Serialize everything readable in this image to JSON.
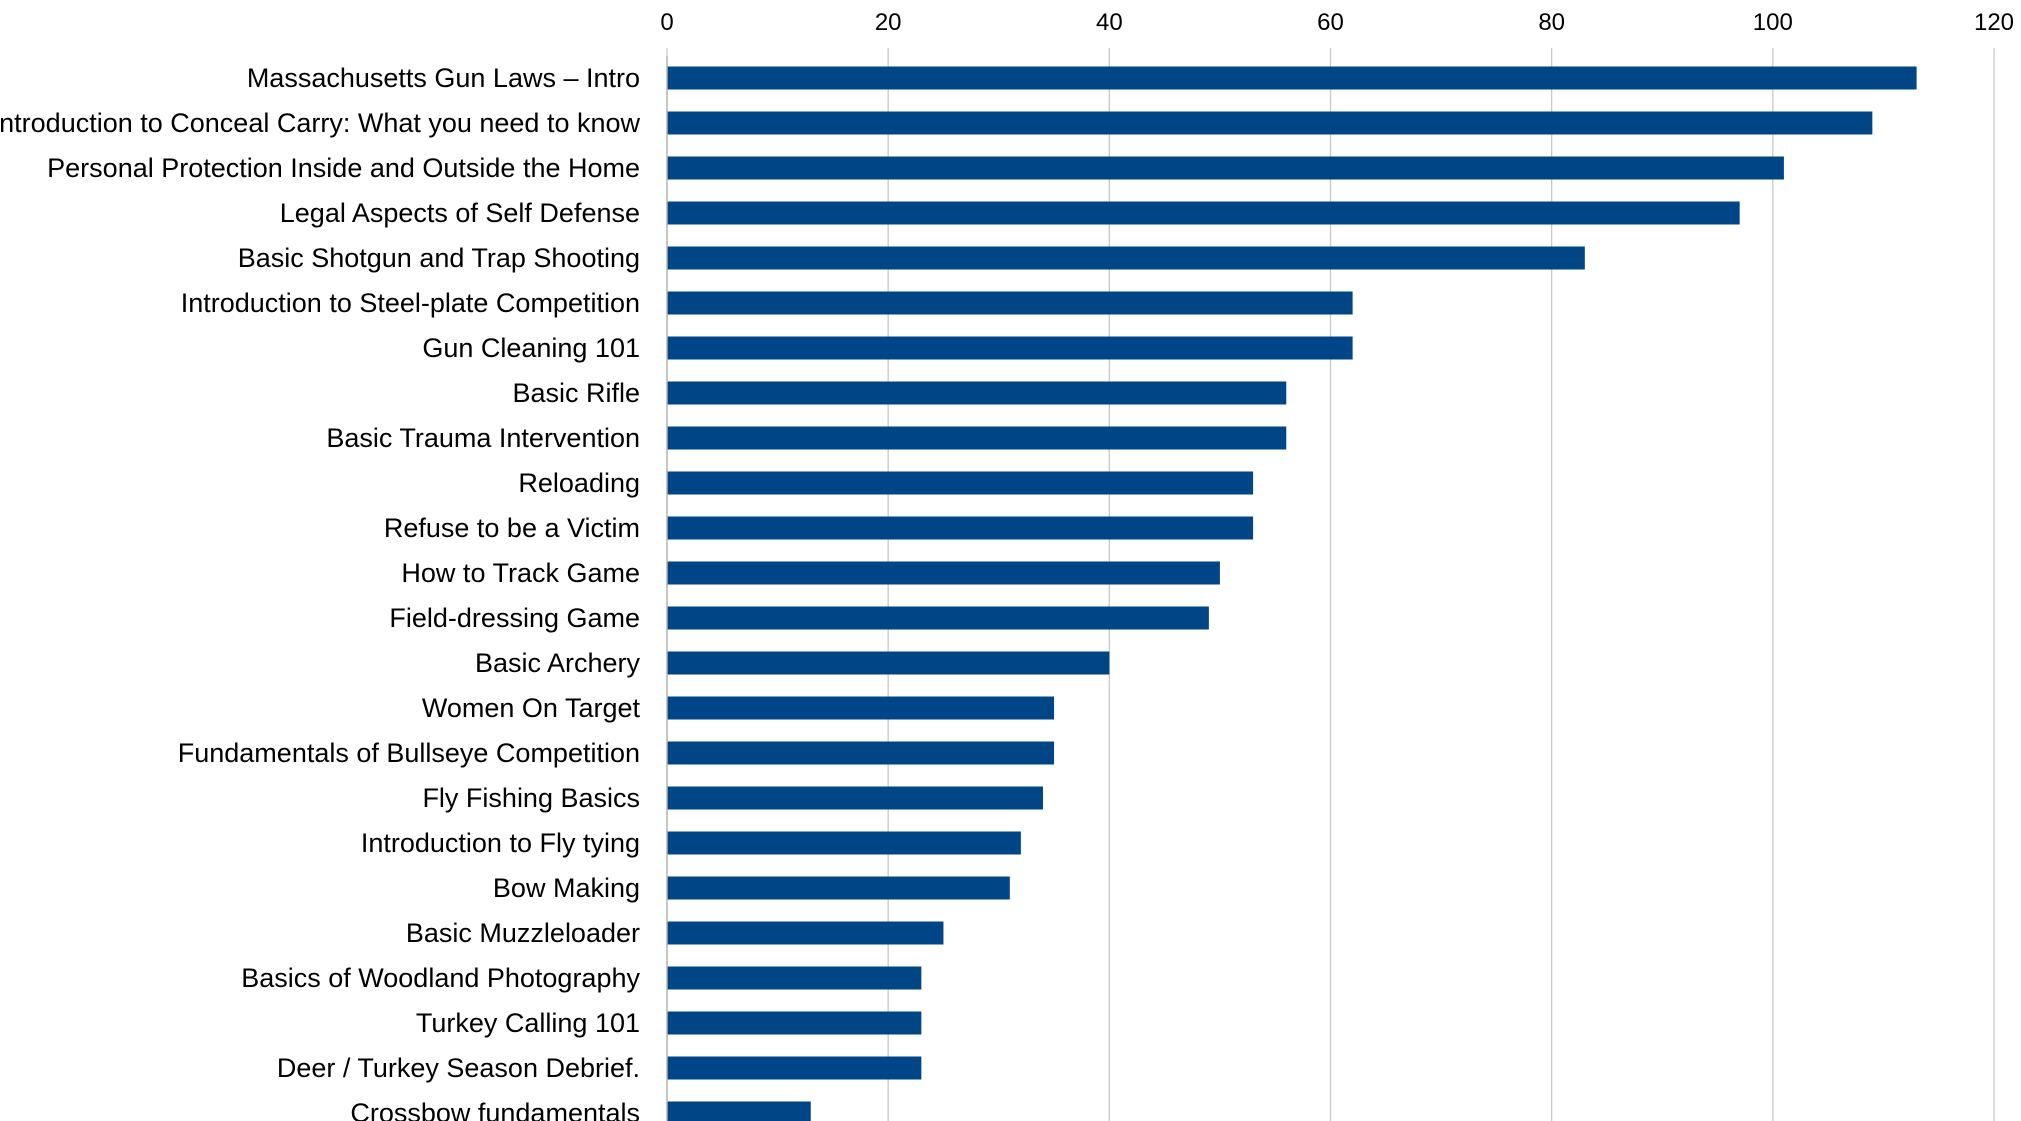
{
  "chart_data": {
    "type": "bar",
    "orientation": "horizontal",
    "title": "",
    "xlabel": "",
    "ylabel": "",
    "xlim": [
      0,
      120
    ],
    "x_ticks": [
      0,
      20,
      40,
      60,
      80,
      100,
      120
    ],
    "x_axis_position": "top",
    "grid": true,
    "legend": "none",
    "bar_color": "#004586",
    "categories": [
      "Massachusetts Gun Laws – Intro",
      "Introduction to Conceal Carry: What you need to know",
      "Personal Protection Inside and Outside the Home",
      "Legal Aspects of Self Defense",
      "Basic Shotgun and Trap Shooting",
      "Introduction to Steel-plate Competition",
      "Gun Cleaning 101",
      "Basic Rifle",
      "Basic Trauma Intervention",
      "Reloading",
      "Refuse to be a Victim",
      "How to Track Game",
      "Field-dressing Game",
      "Basic Archery",
      "Women On Target",
      "Fundamentals of Bullseye Competition",
      "Fly Fishing Basics",
      "Introduction to Fly tying",
      "Bow Making",
      "Basic Muzzleloader",
      "Basics of Woodland Photography",
      "Turkey Calling 101",
      "Deer / Turkey Season Debrief.",
      "Crossbow fundamentals"
    ],
    "values": [
      113,
      109,
      101,
      97,
      83,
      62,
      62,
      56,
      56,
      53,
      53,
      50,
      49,
      40,
      35,
      35,
      34,
      32,
      31,
      25,
      23,
      23,
      23,
      13
    ]
  }
}
